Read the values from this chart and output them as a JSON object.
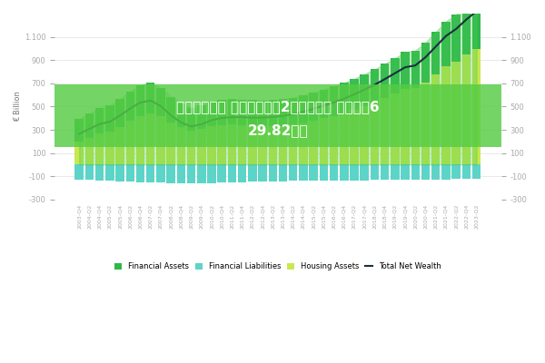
{
  "ylabel": "€ Billion",
  "legend_labels": [
    "Financial Assets",
    "Financial Liabilities",
    "Housing Assets",
    "Total Net Wealth"
  ],
  "color_financial_assets": "#2db84b",
  "color_financial_liabilities": "#5dd4c8",
  "color_housing_assets": "#c8e84e",
  "color_total_net_wealth": "#1a3040",
  "color_overlay": "#4eca55",
  "background_color": "#ffffff",
  "ylim_min": -300,
  "ylim_max": 1300,
  "yticks": [
    -300,
    -100,
    100,
    300,
    500,
    700,
    900,
    1100
  ],
  "quarters": [
    "2003-Q4",
    "2004-Q2",
    "2004-Q4",
    "2005-Q2",
    "2005-Q4",
    "2006-Q2",
    "2006-Q4",
    "2007-Q2",
    "2007-Q4",
    "2008-Q2",
    "2008-Q4",
    "2009-Q2",
    "2009-Q4",
    "2010-Q2",
    "2010-Q4",
    "2011-Q2",
    "2011-Q4",
    "2012-Q2",
    "2012-Q4",
    "2013-Q2",
    "2013-Q4",
    "2014-Q2",
    "2014-Q4",
    "2015-Q2",
    "2015-Q4",
    "2016-Q2",
    "2016-Q4",
    "2017-Q2",
    "2017-Q4",
    "2018-Q2",
    "2018-Q4",
    "2019-Q2",
    "2019-Q4",
    "2020-Q2",
    "2020-Q4",
    "2021-Q2",
    "2021-Q4",
    "2022-Q2",
    "2022-Q4",
    "2023-Q2"
  ],
  "financial_assets": [
    195,
    210,
    220,
    225,
    240,
    255,
    270,
    265,
    245,
    220,
    200,
    195,
    200,
    210,
    215,
    218,
    220,
    218,
    220,
    225,
    228,
    232,
    238,
    242,
    248,
    255,
    262,
    268,
    278,
    288,
    298,
    308,
    320,
    325,
    345,
    365,
    385,
    405,
    425,
    445
  ],
  "financial_liabilities": [
    -130,
    -132,
    -136,
    -140,
    -143,
    -147,
    -150,
    -153,
    -156,
    -160,
    -163,
    -162,
    -160,
    -157,
    -155,
    -153,
    -151,
    -149,
    -147,
    -145,
    -143,
    -141,
    -140,
    -139,
    -138,
    -137,
    -136,
    -135,
    -134,
    -133,
    -132,
    -131,
    -130,
    -129,
    -128,
    -127,
    -126,
    -125,
    -124,
    -123
  ],
  "housing_assets": [
    200,
    230,
    265,
    285,
    325,
    375,
    415,
    440,
    415,
    365,
    325,
    295,
    308,
    330,
    342,
    344,
    340,
    336,
    332,
    330,
    334,
    344,
    358,
    378,
    398,
    418,
    442,
    472,
    502,
    532,
    570,
    610,
    648,
    658,
    708,
    778,
    848,
    888,
    948,
    998
  ],
  "total_net_wealth": [
    265,
    308,
    349,
    370,
    422,
    483,
    535,
    552,
    504,
    425,
    362,
    328,
    348,
    383,
    402,
    409,
    409,
    405,
    405,
    410,
    419,
    435,
    456,
    481,
    508,
    536,
    568,
    605,
    646,
    687,
    736,
    787,
    838,
    854,
    925,
    1016,
    1107,
    1168,
    1249,
    1320
  ]
}
